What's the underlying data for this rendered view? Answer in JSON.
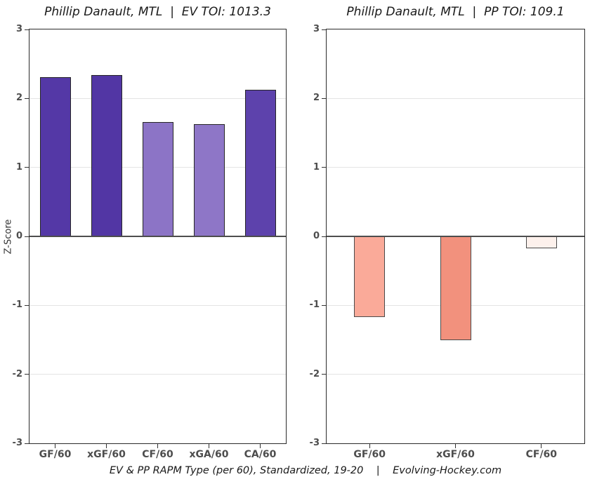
{
  "caption": "EV & PP RAPM Type (per 60), Standardized, 19-20    |    Evolving-Hockey.com",
  "chart_data": [
    {
      "type": "bar",
      "title": "Phillip Danault, MTL  |  EV TOI: 1013.3",
      "ylabel": "Z-Score",
      "categories": [
        "GF/60",
        "xGF/60",
        "CF/60",
        "xGA/60",
        "CA/60"
      ],
      "values": [
        2.31,
        2.34,
        1.66,
        1.63,
        2.13
      ],
      "bar_colors": [
        "#5438A6",
        "#5236A4",
        "#8C74C6",
        "#8E76C7",
        "#5D42AC"
      ],
      "bar_border": "#262626",
      "ylim": [
        -3,
        3
      ],
      "yticks": [
        3,
        2,
        1,
        0,
        -1,
        -2,
        -3
      ],
      "grid": true,
      "legend": "none"
    },
    {
      "type": "bar",
      "title": "Phillip Danault, MTL  |  PP TOI: 109.1",
      "ylabel": "",
      "categories": [
        "GF/60",
        "xGF/60",
        "CF/60"
      ],
      "values": [
        -1.17,
        -1.51,
        -0.17
      ],
      "bar_colors": [
        "#FAAA99",
        "#F2917D",
        "#FDF1EC"
      ],
      "bar_border": "#4A4A4A",
      "ylim": [
        -3,
        3
      ],
      "yticks": [
        3,
        2,
        1,
        0,
        -1,
        -2,
        -3
      ],
      "grid": true,
      "legend": "none"
    }
  ]
}
